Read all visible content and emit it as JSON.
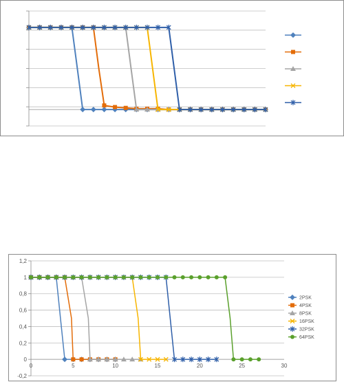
{
  "chart_data": [
    {
      "type": "line",
      "legend": "right",
      "grid": true,
      "y_tick_count": 7,
      "xlim": [
        0,
        22
      ],
      "ylim": [
        -0.2,
        1.2
      ],
      "series": [
        {
          "color": "#4f81bd",
          "marker": "diamond",
          "x": [
            0,
            1,
            2,
            3,
            4,
            4.5,
            5,
            6,
            7,
            8,
            9,
            10,
            11,
            12,
            13,
            14,
            15,
            16,
            17,
            18,
            19,
            20,
            21,
            22
          ],
          "y": [
            1,
            1,
            1,
            1,
            1,
            0.5,
            0,
            0,
            0,
            0,
            0,
            0,
            0,
            0,
            0,
            0,
            0,
            0,
            0,
            0,
            0,
            0,
            0,
            0
          ]
        },
        {
          "color": "#e36c09",
          "marker": "square",
          "x": [
            0,
            1,
            2,
            3,
            4,
            5,
            6,
            6.5,
            7,
            8,
            9,
            10,
            11,
            12,
            13,
            14,
            15,
            16,
            17,
            18,
            19,
            20,
            21,
            22
          ],
          "y": [
            1,
            1,
            1,
            1,
            1,
            1,
            1,
            0.5,
            0.05,
            0.03,
            0.02,
            0.01,
            0.01,
            0.01,
            0,
            0,
            0,
            0,
            0,
            0,
            0,
            0,
            0,
            0
          ]
        },
        {
          "color": "#a5a5a5",
          "marker": "triangle",
          "x": [
            0,
            1,
            2,
            3,
            4,
            5,
            6,
            7,
            8,
            9,
            9.5,
            10,
            11,
            12,
            13,
            14,
            15,
            16,
            17,
            18,
            19,
            20,
            21,
            22
          ],
          "y": [
            1,
            1,
            1,
            1,
            1,
            1,
            1,
            1,
            1,
            1,
            0.5,
            0,
            0,
            0,
            0,
            0,
            0,
            0,
            0,
            0,
            0,
            0,
            0,
            0
          ]
        },
        {
          "color": "#f7b500",
          "marker": "x",
          "x": [
            0,
            1,
            2,
            3,
            4,
            5,
            6,
            7,
            8,
            9,
            10,
            11,
            11.5,
            12,
            13,
            14,
            15,
            16,
            17,
            18,
            19,
            20,
            21,
            22
          ],
          "y": [
            1,
            1,
            1,
            1,
            1,
            1,
            1,
            1,
            1,
            1,
            1,
            1,
            0.5,
            0,
            0,
            0,
            0,
            0,
            0,
            0,
            0,
            0,
            0,
            0
          ]
        },
        {
          "color": "#2e5ea8",
          "marker": "star",
          "x": [
            0,
            1,
            2,
            3,
            4,
            5,
            6,
            7,
            8,
            9,
            10,
            11,
            12,
            13,
            13.5,
            14,
            15,
            16,
            17,
            18,
            19,
            20,
            21,
            22
          ],
          "y": [
            1,
            1,
            1,
            1,
            1,
            1,
            1,
            1,
            1,
            1,
            1,
            1,
            1,
            1,
            0.5,
            0,
            0,
            0,
            0,
            0,
            0,
            0,
            0,
            0
          ]
        }
      ]
    },
    {
      "type": "line",
      "legend": "right",
      "grid": true,
      "xlim": [
        0,
        30
      ],
      "ylim": [
        -0.2,
        1.2
      ],
      "x_ticks": [
        "0",
        "5",
        "10",
        "15",
        "20",
        "25",
        "30"
      ],
      "y_ticks": [
        "-0,2",
        "0",
        "0,2",
        "0,4",
        "0,6",
        "0,8",
        "1",
        "1,2"
      ],
      "series": [
        {
          "name": "2PSK",
          "color": "#4f81bd",
          "marker": "diamond",
          "x": [
            0,
            1,
            2,
            3,
            3.5,
            4,
            5,
            6,
            7,
            8,
            9,
            10
          ],
          "y": [
            1,
            1,
            1,
            1,
            0.5,
            0,
            0,
            0,
            0,
            0,
            0,
            0
          ]
        },
        {
          "name": "4PSK",
          "color": "#e36c09",
          "marker": "square",
          "x": [
            0,
            1,
            2,
            3,
            4,
            4.8,
            5,
            6,
            7,
            8,
            9,
            10
          ],
          "y": [
            1,
            1,
            1,
            1,
            1,
            0.5,
            0,
            0,
            0,
            0,
            0,
            0
          ]
        },
        {
          "name": "8PSK",
          "color": "#a5a5a5",
          "marker": "triangle",
          "x": [
            0,
            1,
            2,
            3,
            4,
            5,
            6,
            6.8,
            7,
            8,
            9,
            10,
            11,
            12,
            13
          ],
          "y": [
            1,
            1,
            1,
            1,
            1,
            1,
            1,
            0.5,
            0,
            0,
            0,
            0,
            0,
            0,
            0
          ]
        },
        {
          "name": "16PSK",
          "color": "#f7b500",
          "marker": "x",
          "x": [
            0,
            1,
            2,
            3,
            4,
            5,
            6,
            7,
            8,
            9,
            10,
            11,
            12,
            12.7,
            13,
            14,
            15,
            16
          ],
          "y": [
            1,
            1,
            1,
            1,
            1,
            1,
            1,
            1,
            1,
            1,
            1,
            1,
            1,
            0.5,
            0,
            0,
            0,
            0
          ]
        },
        {
          "name": "32PSK",
          "color": "#2e5ea8",
          "marker": "star",
          "x": [
            0,
            1,
            2,
            3,
            4,
            5,
            6,
            7,
            8,
            9,
            10,
            11,
            12,
            13,
            14,
            15,
            16,
            16.5,
            17,
            18,
            19,
            20,
            21,
            22
          ],
          "y": [
            1,
            1,
            1,
            1,
            1,
            1,
            1,
            1,
            1,
            1,
            1,
            1,
            1,
            1,
            1,
            1,
            1,
            0.5,
            0,
            0,
            0,
            0,
            0,
            0
          ]
        },
        {
          "name": "64PSK",
          "color": "#5aa02c",
          "marker": "circle",
          "x": [
            0,
            1,
            2,
            3,
            4,
            5,
            6,
            7,
            8,
            9,
            10,
            11,
            12,
            13,
            14,
            15,
            16,
            17,
            18,
            19,
            20,
            21,
            22,
            23,
            23.6,
            24,
            25,
            26,
            27
          ],
          "y": [
            1,
            1,
            1,
            1,
            1,
            1,
            1,
            1,
            1,
            1,
            1,
            1,
            1,
            1,
            1,
            1,
            1,
            1,
            1,
            1,
            1,
            1,
            1,
            1,
            0.5,
            0,
            0,
            0,
            0
          ]
        }
      ]
    }
  ]
}
